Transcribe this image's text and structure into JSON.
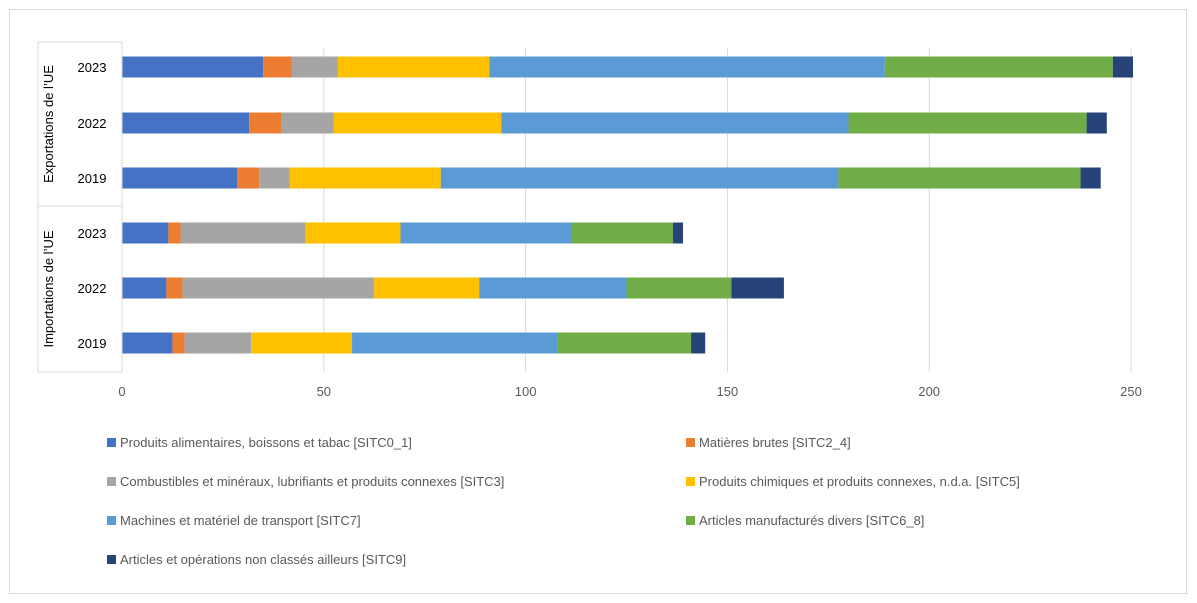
{
  "chart_data": {
    "type": "bar",
    "orientation": "horizontal",
    "stacked": true,
    "groups": [
      {
        "label": "Exportations de l’UE",
        "categories": [
          "2023",
          "2022",
          "2019"
        ]
      },
      {
        "label": "Importations de l’UE",
        "categories": [
          "2023",
          "2022",
          "2019"
        ]
      }
    ],
    "categories": [
      "Exportations de l’UE 2023",
      "Exportations de l’UE 2022",
      "Exportations de l’UE 2019",
      "Importations de l’UE 2023",
      "Importations de l’UE 2022",
      "Importations de l’UE 2019"
    ],
    "series": [
      {
        "name": "Produits alimentaires, boissons et tabac [SITC0_1]",
        "color": "#4472C4",
        "values": [
          35.0,
          31.5,
          28.5,
          11.5,
          11.0,
          12.5
        ]
      },
      {
        "name": "Matières brutes [SITC2_4]",
        "color": "#ED7D31",
        "values": [
          7.0,
          8.0,
          5.5,
          3.0,
          4.0,
          3.0
        ]
      },
      {
        "name": "Combustibles et minéraux, lubrifiants et produits connexes [SITC3]",
        "color": "#A5A5A5",
        "values": [
          11.5,
          13.0,
          7.5,
          31.0,
          47.5,
          16.5
        ]
      },
      {
        "name": "Produits chimiques et produits connexes, n.d.a. [SITC5]",
        "color": "#FFC000",
        "values": [
          37.5,
          41.5,
          37.5,
          23.5,
          26.0,
          25.0
        ]
      },
      {
        "name": "Machines et matériel de transport [SITC7]",
        "color": "#5B9BD5",
        "values": [
          98.0,
          86.0,
          98.5,
          42.5,
          36.5,
          51.0
        ]
      },
      {
        "name": "Articles manufacturés divers [SITC6_8]",
        "color": "#70AD47",
        "values": [
          56.5,
          59.0,
          60.0,
          25.0,
          26.0,
          33.0
        ]
      },
      {
        "name": "Articles et opérations non classés ailleurs  [SITC9]",
        "color": "#264478",
        "values": [
          5.0,
          5.0,
          5.0,
          2.5,
          13.0,
          3.5
        ]
      }
    ],
    "xlim": [
      0,
      250
    ],
    "xticks": [
      "0",
      "50",
      "100",
      "150",
      "200",
      "250"
    ],
    "grid": true,
    "legend_position": "bottom",
    "title": "",
    "xlabel": "",
    "ylabel": ""
  }
}
